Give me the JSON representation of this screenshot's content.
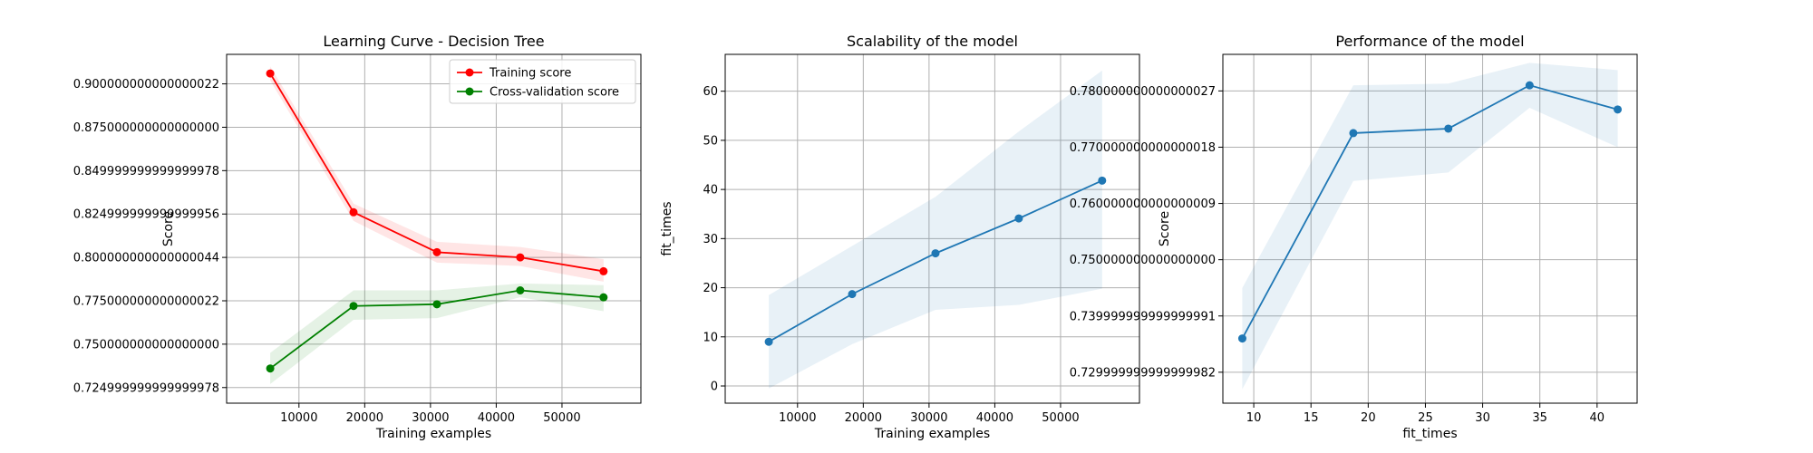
{
  "figure": {
    "background": "#ffffff",
    "grid": true
  },
  "chart_data": [
    {
      "type": "line",
      "title": "Learning Curve - Decision Tree",
      "xlabel": "Training examples",
      "ylabel": "Score",
      "xlim": [
        -1000,
        62000
      ],
      "ylim": [
        0.716,
        0.917
      ],
      "xticks": [
        10000,
        20000,
        30000,
        40000,
        50000
      ],
      "yticks": [
        0.725,
        0.75,
        0.775,
        0.8,
        0.825,
        0.85,
        0.875,
        0.9
      ],
      "grid": true,
      "legend": {
        "position": "top-right"
      },
      "x": [
        5630,
        18300,
        30980,
        43650,
        56320
      ],
      "series": [
        {
          "name": "Training score",
          "color": "#ff0000",
          "values": [
            0.906,
            0.826,
            0.803,
            0.8,
            0.792
          ],
          "band_lower": [
            0.902,
            0.821,
            0.797,
            0.795,
            0.786
          ],
          "band_upper": [
            0.91,
            0.831,
            0.809,
            0.806,
            0.799
          ]
        },
        {
          "name": "Cross-validation score",
          "color": "#008000",
          "values": [
            0.736,
            0.772,
            0.773,
            0.781,
            0.777
          ],
          "band_lower": [
            0.727,
            0.764,
            0.765,
            0.777,
            0.769
          ],
          "band_upper": [
            0.745,
            0.781,
            0.781,
            0.785,
            0.784
          ]
        }
      ]
    },
    {
      "type": "line",
      "title": "Scalability of the model",
      "xlabel": "Training examples",
      "ylabel": "fit_times",
      "xlim": [
        -1000,
        62000
      ],
      "ylim": [
        -3.5,
        67.5
      ],
      "xticks": [
        10000,
        20000,
        30000,
        40000,
        50000
      ],
      "yticks": [
        0,
        10,
        20,
        30,
        40,
        50,
        60
      ],
      "grid": true,
      "x": [
        5630,
        18300,
        30980,
        43650,
        56320
      ],
      "series": [
        {
          "color": "#1f77b4",
          "values": [
            9,
            18.7,
            27,
            34.1,
            41.8
          ],
          "band_lower": [
            -0.5,
            8.5,
            15.5,
            16.5,
            19.8
          ],
          "band_upper": [
            18.5,
            28.5,
            38.5,
            51.8,
            64.2
          ]
        }
      ]
    },
    {
      "type": "line",
      "title": "Performance of the model",
      "xlabel": "fit_times",
      "ylabel": "Score",
      "xlim": [
        7.3,
        43.5
      ],
      "ylim": [
        0.7245,
        0.7865
      ],
      "xticks": [
        10,
        15,
        20,
        25,
        30,
        35,
        40
      ],
      "yticks": [
        0.73,
        0.74,
        0.75,
        0.76,
        0.77,
        0.78
      ],
      "grid": true,
      "x": [
        9,
        18.7,
        27,
        34.1,
        41.8
      ],
      "series": [
        {
          "color": "#1f77b4",
          "values": [
            0.736,
            0.7725,
            0.7733,
            0.781,
            0.7767
          ],
          "band_lower": [
            0.727,
            0.764,
            0.7655,
            0.777,
            0.77
          ],
          "band_upper": [
            0.745,
            0.781,
            0.7813,
            0.785,
            0.7837
          ]
        }
      ]
    }
  ]
}
